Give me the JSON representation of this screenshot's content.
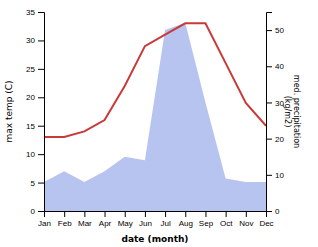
{
  "chart_data": {
    "type": "line",
    "categories": [
      "Jan",
      "Feb",
      "Mar",
      "Apr",
      "May",
      "Jun",
      "Jul",
      "Aug",
      "Sep",
      "Oct",
      "Nov",
      "Dec"
    ],
    "xlabel": "date (month)",
    "ylabel": "max temp (C)",
    "y2label": "med. precipitation\n(kg/m2)",
    "ylim": [
      0,
      35
    ],
    "yticks": [
      0,
      5,
      10,
      15,
      20,
      25,
      30,
      35
    ],
    "y2lim": [
      0,
      55
    ],
    "y2ticks": [
      0,
      10,
      20,
      30,
      40,
      50
    ],
    "grid": false,
    "series": [
      {
        "type": "area",
        "axis": "y2",
        "color": "#b8c4f0",
        "values": [
          8,
          11,
          8,
          11,
          15,
          14,
          50,
          52,
          30,
          9,
          8,
          8
        ]
      },
      {
        "type": "line",
        "color": "#c83a3a",
        "values": [
          13,
          13,
          14,
          16,
          22,
          29,
          31,
          33,
          33,
          26,
          19,
          15
        ]
      }
    ]
  }
}
